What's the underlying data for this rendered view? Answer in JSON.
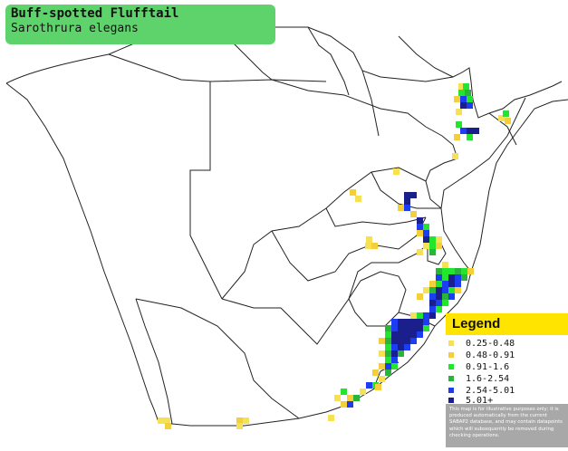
{
  "title": {
    "common_name": "Buff-spotted Flufftail",
    "scientific_name": "Sarothrura elegans"
  },
  "legend": {
    "heading": "Legend",
    "items": [
      {
        "label": "0.25-0.48",
        "color": "#f6e154"
      },
      {
        "label": "0.48-0.91",
        "color": "#f4cf3a"
      },
      {
        "label": "0.91-1.6",
        "color": "#22e62e"
      },
      {
        "label": "1.6-2.54",
        "color": "#29b43a"
      },
      {
        "label": "2.54-5.01",
        "color": "#1d3df0"
      },
      {
        "label": "5.01+",
        "color": "#1a1f8c"
      }
    ],
    "note": "This map is for illustrative purposes only; it is produced automatically from the current SABAP2 database, and may contain datapoints which will subsequently be removed during checking operations."
  },
  "map": {
    "background_color": "#ffffff",
    "border_color": "#222222"
  }
}
